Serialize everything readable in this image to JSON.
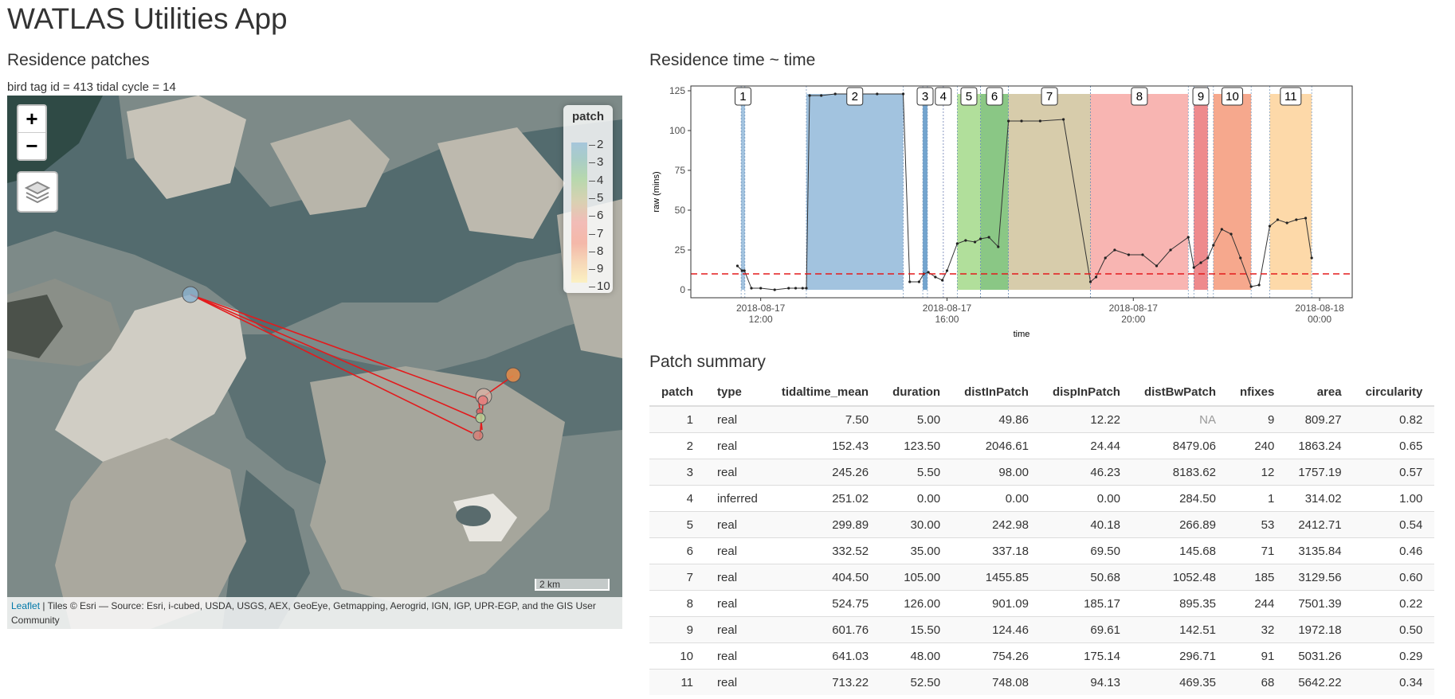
{
  "app_title": "WATLAS Utilities App",
  "map_section": {
    "title": "Residence patches",
    "subtitle": "bird tag id = 413 tidal cycle = 14",
    "zoom_in": "+",
    "zoom_out": "−",
    "legend": {
      "title": "patch",
      "labels": [
        "2",
        "3",
        "4",
        "5",
        "6",
        "7",
        "8",
        "9",
        "10"
      ]
    },
    "scale_label": "2 km",
    "attribution_link": "Leaflet",
    "attribution_text": " | Tiles © Esri — Source: Esri, i-cubed, USDA, USGS, AEX, GeoEye, Getmapping, Aerogrid, IGN, IGP, UPR-EGP, and the GIS User Community",
    "colors": {
      "track": "#e31a1c"
    }
  },
  "plot_section": {
    "title": "Residence time ~ time"
  },
  "chart_data": {
    "type": "line",
    "title": "",
    "xlabel": "time",
    "ylabel": "raw (mins)",
    "ylim": [
      -5,
      128
    ],
    "xlim": [
      10.5,
      24.7
    ],
    "yticks": [
      0,
      25,
      50,
      75,
      100,
      125
    ],
    "xticks": [
      {
        "value": 12,
        "label1": "2018-08-17",
        "label2": "12:00"
      },
      {
        "value": 16,
        "label1": "2018-08-17",
        "label2": "16:00"
      },
      {
        "value": 20,
        "label1": "2018-08-17",
        "label2": "20:00"
      },
      {
        "value": 24,
        "label1": "2018-08-18",
        "label2": "00:00"
      }
    ],
    "threshold": 10,
    "patches": [
      {
        "label": "1",
        "start": 11.58,
        "end": 11.66,
        "color": "#9dc0dd"
      },
      {
        "label": "2",
        "start": 12.98,
        "end": 15.06,
        "color": "#9dc0dd"
      },
      {
        "label": "3",
        "start": 15.48,
        "end": 15.58,
        "color": "#6b9fcb"
      },
      {
        "label": "4",
        "start": 15.92,
        "end": 15.92,
        "color": "#c070c0"
      },
      {
        "label": "5",
        "start": 16.22,
        "end": 16.72,
        "color": "#addd96"
      },
      {
        "label": "6",
        "start": 16.72,
        "end": 17.32,
        "color": "#84c47e"
      },
      {
        "label": "7",
        "start": 17.32,
        "end": 19.08,
        "color": "#d5c9a7"
      },
      {
        "label": "8",
        "start": 19.08,
        "end": 21.18,
        "color": "#f8b1ae"
      },
      {
        "label": "9",
        "start": 21.3,
        "end": 21.6,
        "color": "#ed8487"
      },
      {
        "label": "10",
        "start": 21.72,
        "end": 22.53,
        "color": "#f6a387"
      },
      {
        "label": "11",
        "start": 22.93,
        "end": 23.83,
        "color": "#fdd7a4"
      }
    ],
    "series": [
      {
        "x": [
          11.5,
          11.6,
          11.65,
          11.8,
          12.0,
          12.3,
          12.6,
          12.75,
          12.9,
          12.98,
          13.05,
          13.3,
          13.6,
          14.0,
          14.5,
          15.06,
          15.2,
          15.4,
          15.5,
          15.6,
          15.75,
          15.9,
          16.0,
          16.22,
          16.4,
          16.6,
          16.72,
          16.9,
          17.1,
          17.32,
          17.6,
          18.0,
          18.5,
          19.08,
          19.2,
          19.4,
          19.6,
          19.9,
          20.2,
          20.5,
          20.8,
          21.18,
          21.3,
          21.45,
          21.6,
          21.72,
          21.9,
          22.1,
          22.3,
          22.53,
          22.7,
          22.93,
          23.1,
          23.3,
          23.5,
          23.7,
          23.83
        ],
        "y": [
          15,
          12,
          12,
          1,
          1,
          0,
          1,
          1,
          1,
          1,
          122,
          122,
          123,
          123,
          123,
          123,
          5,
          5,
          10,
          11,
          8,
          6,
          12,
          29,
          31,
          30,
          32,
          33,
          27,
          106,
          106,
          106,
          107,
          5,
          8,
          20,
          25,
          22,
          22,
          15,
          25,
          33,
          14,
          17,
          20,
          28,
          38,
          35,
          20,
          2,
          3,
          40,
          44,
          42,
          44,
          45,
          20
        ]
      }
    ]
  },
  "table": {
    "title": "Patch summary",
    "columns": [
      "patch",
      "type",
      "tidaltime_mean",
      "duration",
      "distInPatch",
      "dispInPatch",
      "distBwPatch",
      "nfixes",
      "area",
      "circularity"
    ],
    "rows": [
      [
        "1",
        "real",
        "7.50",
        "5.00",
        "49.86",
        "12.22",
        "NA",
        "9",
        "809.27",
        "0.82"
      ],
      [
        "2",
        "real",
        "152.43",
        "123.50",
        "2046.61",
        "24.44",
        "8479.06",
        "240",
        "1863.24",
        "0.65"
      ],
      [
        "3",
        "real",
        "245.26",
        "5.50",
        "98.00",
        "46.23",
        "8183.62",
        "12",
        "1757.19",
        "0.57"
      ],
      [
        "4",
        "inferred",
        "251.02",
        "0.00",
        "0.00",
        "0.00",
        "284.50",
        "1",
        "314.02",
        "1.00"
      ],
      [
        "5",
        "real",
        "299.89",
        "30.00",
        "242.98",
        "40.18",
        "266.89",
        "53",
        "2412.71",
        "0.54"
      ],
      [
        "6",
        "real",
        "332.52",
        "35.00",
        "337.18",
        "69.50",
        "145.68",
        "71",
        "3135.84",
        "0.46"
      ],
      [
        "7",
        "real",
        "404.50",
        "105.00",
        "1455.85",
        "50.68",
        "1052.48",
        "185",
        "3129.56",
        "0.60"
      ],
      [
        "8",
        "real",
        "524.75",
        "126.00",
        "901.09",
        "185.17",
        "895.35",
        "244",
        "7501.39",
        "0.22"
      ],
      [
        "9",
        "real",
        "601.76",
        "15.50",
        "124.46",
        "69.61",
        "142.51",
        "32",
        "1972.18",
        "0.50"
      ],
      [
        "10",
        "real",
        "641.03",
        "48.00",
        "754.26",
        "175.14",
        "296.71",
        "91",
        "5031.26",
        "0.29"
      ],
      [
        "11",
        "real",
        "713.22",
        "52.50",
        "748.08",
        "94.13",
        "469.35",
        "68",
        "5642.22",
        "0.34"
      ]
    ]
  }
}
